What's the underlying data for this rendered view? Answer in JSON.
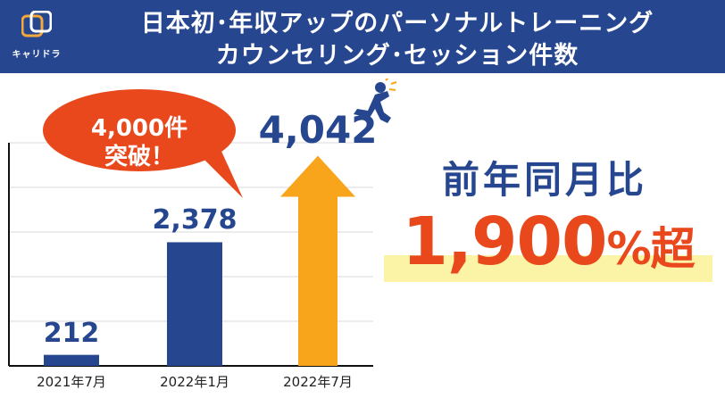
{
  "header": {
    "logo_text": "キャリドラ",
    "title_line1": "日本初･年収アップのパーソナルトレーニング",
    "title_line2": "カウンセリング･セッション件数"
  },
  "callout": {
    "line1": "4,000件",
    "line2": "突破！"
  },
  "yoy": {
    "label": "前年同月比",
    "value": "1,900",
    "percent": "%",
    "suffix": "超"
  },
  "colors": {
    "header_bg": "#26478f",
    "bar_blue": "#26478f",
    "bar_orange": "#f9a51b",
    "callout_red": "#e8481c",
    "highlight_yellow": "#fbf3a5"
  },
  "chart_data": {
    "type": "bar",
    "categories": [
      "2021年7月",
      "2022年1月",
      "2022年7月"
    ],
    "values": [
      212,
      2378,
      4042
    ],
    "value_labels": [
      "212",
      "2,378",
      "4,042"
    ],
    "ylim": [
      0,
      4600
    ],
    "grid": true,
    "bar_colors": [
      "#26478f",
      "#26478f",
      "#f9a51b"
    ]
  }
}
